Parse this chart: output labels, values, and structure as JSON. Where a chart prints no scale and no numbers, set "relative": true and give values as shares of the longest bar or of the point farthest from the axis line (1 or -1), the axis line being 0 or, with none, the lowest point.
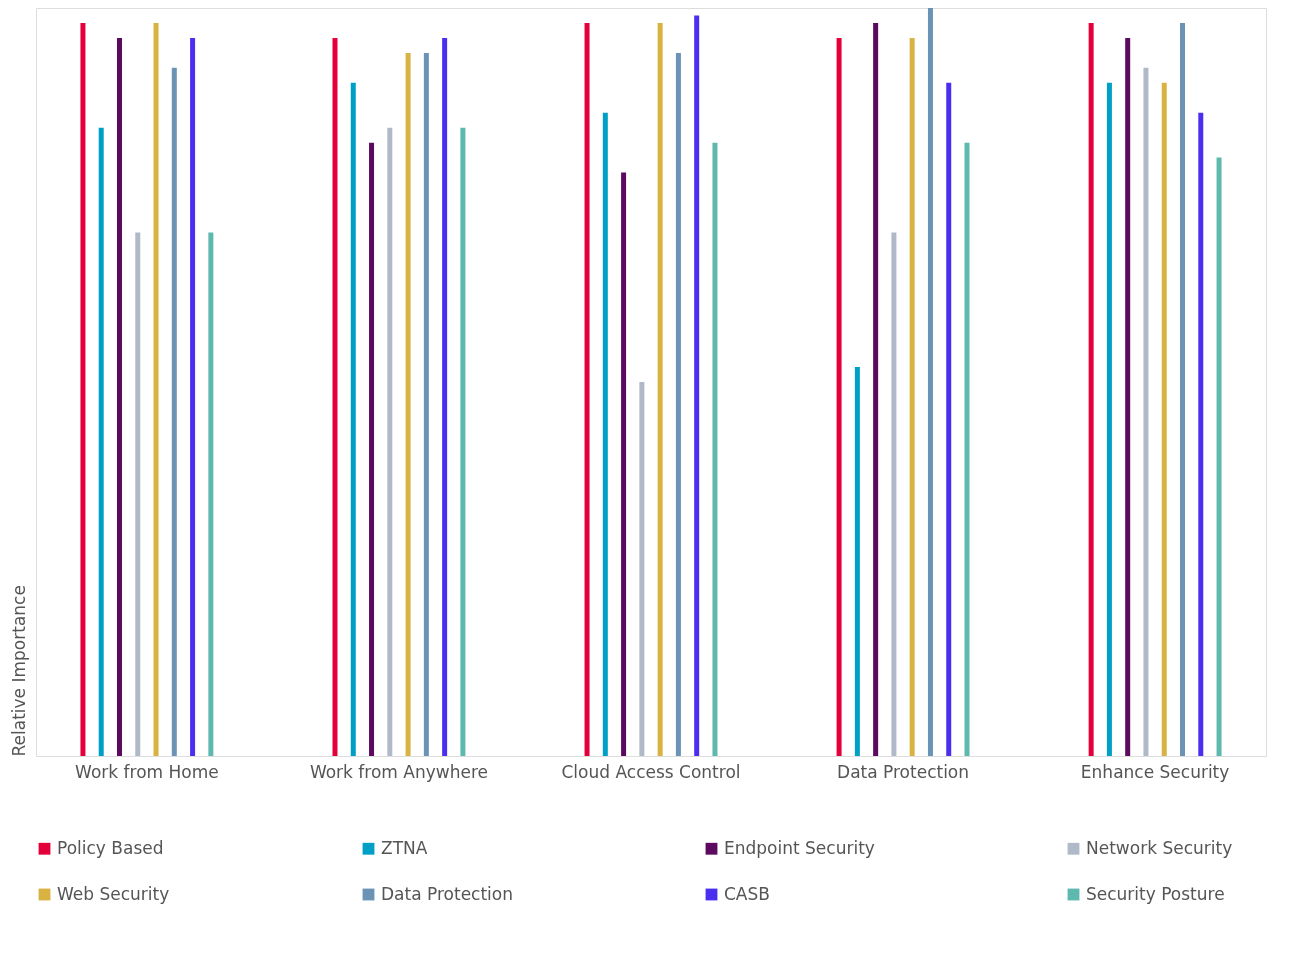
{
  "chart_data": {
    "type": "bar",
    "relative": true,
    "ylabel": "Relative Importance",
    "categories": [
      "Work from Home",
      "Work from Anywhere",
      "Cloud Access Control",
      "Data Protection",
      "Enhance Security"
    ],
    "series": [
      {
        "name": "Policy Based",
        "color": "#e4003b",
        "values": [
          0.98,
          0.96,
          0.98,
          0.96,
          0.98
        ]
      },
      {
        "name": "ZTNA",
        "color": "#009fc6",
        "values": [
          0.84,
          0.9,
          0.86,
          0.52,
          0.9
        ]
      },
      {
        "name": "Endpoint Security",
        "color": "#5c0a60",
        "values": [
          0.96,
          0.82,
          0.78,
          0.98,
          0.96
        ]
      },
      {
        "name": "Network Security",
        "color": "#b0b9c8",
        "values": [
          0.7,
          0.84,
          0.5,
          0.7,
          0.92
        ]
      },
      {
        "name": "Web Security",
        "color": "#d9b342",
        "values": [
          0.98,
          0.94,
          0.98,
          0.96,
          0.9
        ]
      },
      {
        "name": "Data Protection",
        "color": "#6b93b5",
        "values": [
          0.92,
          0.94,
          0.94,
          1.0,
          0.98
        ]
      },
      {
        "name": "CASB",
        "color": "#4b2ff0",
        "values": [
          0.96,
          0.96,
          0.99,
          0.9,
          0.86
        ]
      },
      {
        "name": "Security Posture",
        "color": "#5db8ad",
        "values": [
          0.7,
          0.84,
          0.82,
          0.82,
          0.8
        ]
      }
    ],
    "legend": "bottom",
    "grid": false
  }
}
